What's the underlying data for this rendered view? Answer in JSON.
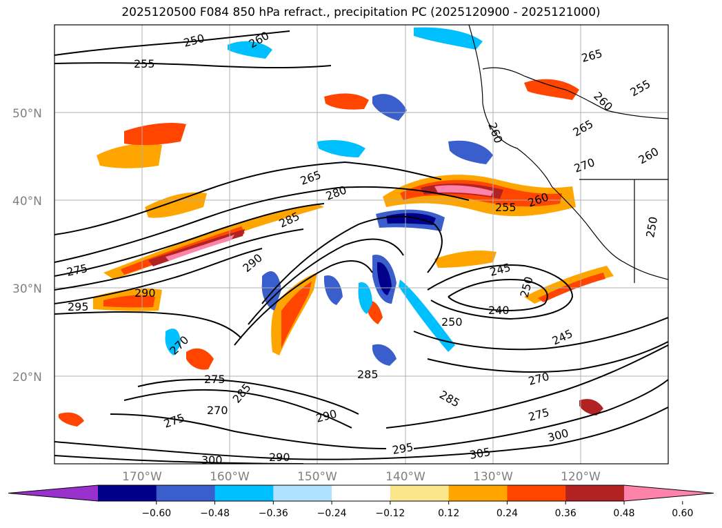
{
  "title": "2025120500 F084 850 hPa refract., precipitation PC (2025120900 - 2025121000)",
  "lat_labels": [
    {
      "value": 50,
      "text": "50°N"
    },
    {
      "value": 40,
      "text": "40°N"
    },
    {
      "value": 30,
      "text": "30°N"
    },
    {
      "value": 20,
      "text": "20°N"
    }
  ],
  "lon_labels": [
    {
      "value": -170,
      "text": "170°W"
    },
    {
      "value": -160,
      "text": "160°W"
    },
    {
      "value": -150,
      "text": "150°W"
    },
    {
      "value": -140,
      "text": "140°W"
    },
    {
      "value": -130,
      "text": "130°W"
    },
    {
      "value": -120,
      "text": "120°W"
    }
  ],
  "colorbar": {
    "colors": [
      "#9932cc",
      "#00008b",
      "#3a5fcd",
      "#00bfff",
      "#b0e2ff",
      "#ffffff",
      "#fbe58b",
      "#ffa500",
      "#ff4500",
      "#b22222",
      "#ff82ab"
    ],
    "ticks": [
      "−0.60",
      "−0.48",
      "−0.36",
      "−0.24",
      "−0.12",
      "0.12",
      "0.24",
      "0.36",
      "0.48",
      "0.60"
    ]
  },
  "contour_labels": [
    "250",
    "255",
    "260",
    "265",
    "270",
    "275",
    "280",
    "285",
    "290",
    "295",
    "300",
    "305",
    "240",
    "245",
    "250",
    "255",
    "260",
    "265",
    "270",
    "275",
    "280",
    "285",
    "290",
    "295",
    "300",
    "270",
    "275",
    "280",
    "285"
  ]
}
